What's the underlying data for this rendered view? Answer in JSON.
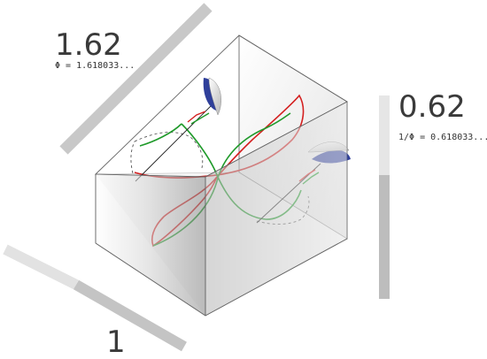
{
  "labels": {
    "long_side": {
      "value": "1.62",
      "formula": "Φ = 1.618033..."
    },
    "short_side": {
      "value": "0.62",
      "formula": "1/Φ = 0.618033..."
    },
    "unit_side": {
      "value": "1"
    }
  },
  "colors": {
    "curve_red": "#d42020",
    "curve_green": "#1f9a2a",
    "edge": "#666666",
    "bar_light": "#e6e6e6",
    "bar_dark": "#bdbdbd",
    "sail_blue": "#2f3f9a"
  }
}
